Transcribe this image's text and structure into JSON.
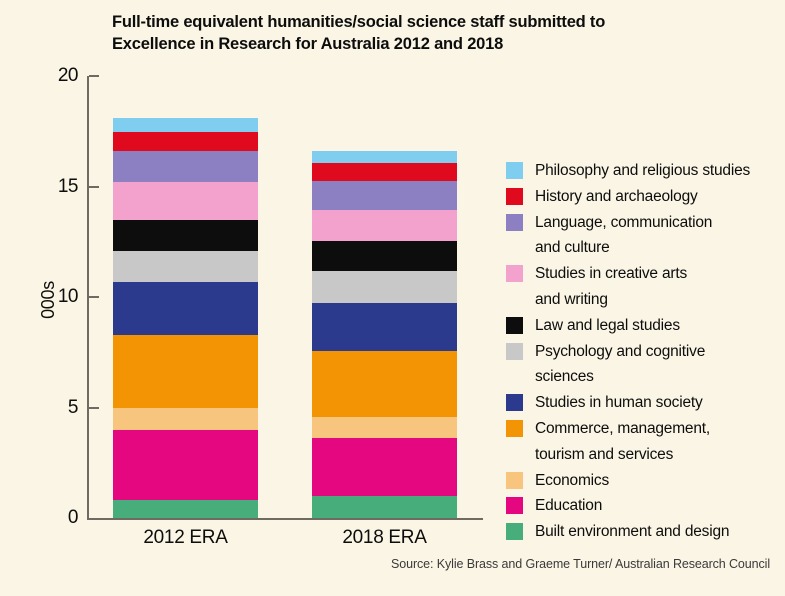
{
  "title": "Full-time equivalent humanities/social science staff submitted to\nExcellence in Research for Australia 2012 and 2018",
  "source": "Source: Kylie Brass and Graeme Turner/ Australian Research Council",
  "colors": {
    "background": "#FAF5E5",
    "axis": "#6F6B62",
    "text": "#0D0D0D"
  },
  "chart_data": {
    "type": "bar",
    "stacked": true,
    "title": "Full-time equivalent humanities/social science staff submitted to Excellence in Research for Australia 2012 and 2018",
    "categories": [
      "2012 ERA",
      "2018 ERA"
    ],
    "xlabel": "",
    "ylabel": "000s",
    "ylim": [
      0,
      20
    ],
    "yticks": [
      0,
      5,
      10,
      15,
      20
    ],
    "grid": false,
    "legend_position": "right",
    "totals": [
      18.0,
      16.6
    ],
    "series": [
      {
        "name": "Built environment and design",
        "color": "#47AE7B",
        "values": [
          0.8,
          1.0
        ],
        "legend_lines": [
          "Built environment and design"
        ]
      },
      {
        "name": "Education",
        "color": "#E5077F",
        "values": [
          3.2,
          2.6
        ],
        "legend_lines": [
          "Education"
        ]
      },
      {
        "name": "Economics",
        "color": "#F7C57D",
        "values": [
          1.0,
          0.95
        ],
        "legend_lines": [
          "Economics"
        ]
      },
      {
        "name": "Commerce, management, tourism and services",
        "color": "#F29404",
        "values": [
          3.3,
          3.0
        ],
        "legend_lines": [
          "Commerce, management,",
          "tourism and services"
        ]
      },
      {
        "name": "Studies in human society",
        "color": "#2C3A8E",
        "values": [
          2.4,
          2.2
        ],
        "legend_lines": [
          "Studies in human society"
        ]
      },
      {
        "name": "Psychology and cognitive sciences",
        "color": "#C8C8C8",
        "values": [
          1.4,
          1.45
        ],
        "legend_lines": [
          "Psychology and cognitive",
          "sciences"
        ]
      },
      {
        "name": "Law and legal studies",
        "color": "#0D0D0D",
        "values": [
          1.4,
          1.35
        ],
        "legend_lines": [
          "Law and legal studies"
        ]
      },
      {
        "name": "Studies in creative arts and writing",
        "color": "#F2A2CC",
        "values": [
          1.7,
          1.4
        ],
        "legend_lines": [
          "Studies in creative arts",
          "and writing"
        ]
      },
      {
        "name": "Language, communication and culture",
        "color": "#8C80C2",
        "values": [
          1.4,
          1.3
        ],
        "legend_lines": [
          "Language, communication",
          "and culture"
        ]
      },
      {
        "name": "History and archaeology",
        "color": "#E00A1E",
        "values": [
          0.85,
          0.8
        ],
        "legend_lines": [
          "History and archaeology"
        ]
      },
      {
        "name": "Philosophy and religious studies",
        "color": "#7FCDEF",
        "values": [
          0.65,
          0.55
        ],
        "legend_lines": [
          "Philosophy and religious studies"
        ]
      }
    ]
  }
}
